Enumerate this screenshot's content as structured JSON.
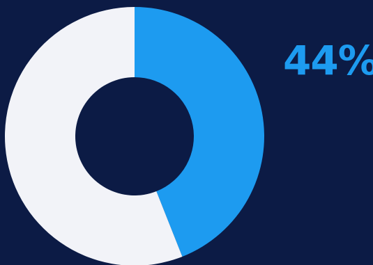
{
  "chart_data": {
    "type": "pie",
    "variant": "donut",
    "slices": [
      {
        "value": 44,
        "color": "#1d9bf0"
      },
      {
        "value": 56,
        "color": "#f2f3f8"
      }
    ],
    "label": "44%",
    "label_color": "#1d9bf0",
    "background": "#0c1b45",
    "legend": "none"
  }
}
